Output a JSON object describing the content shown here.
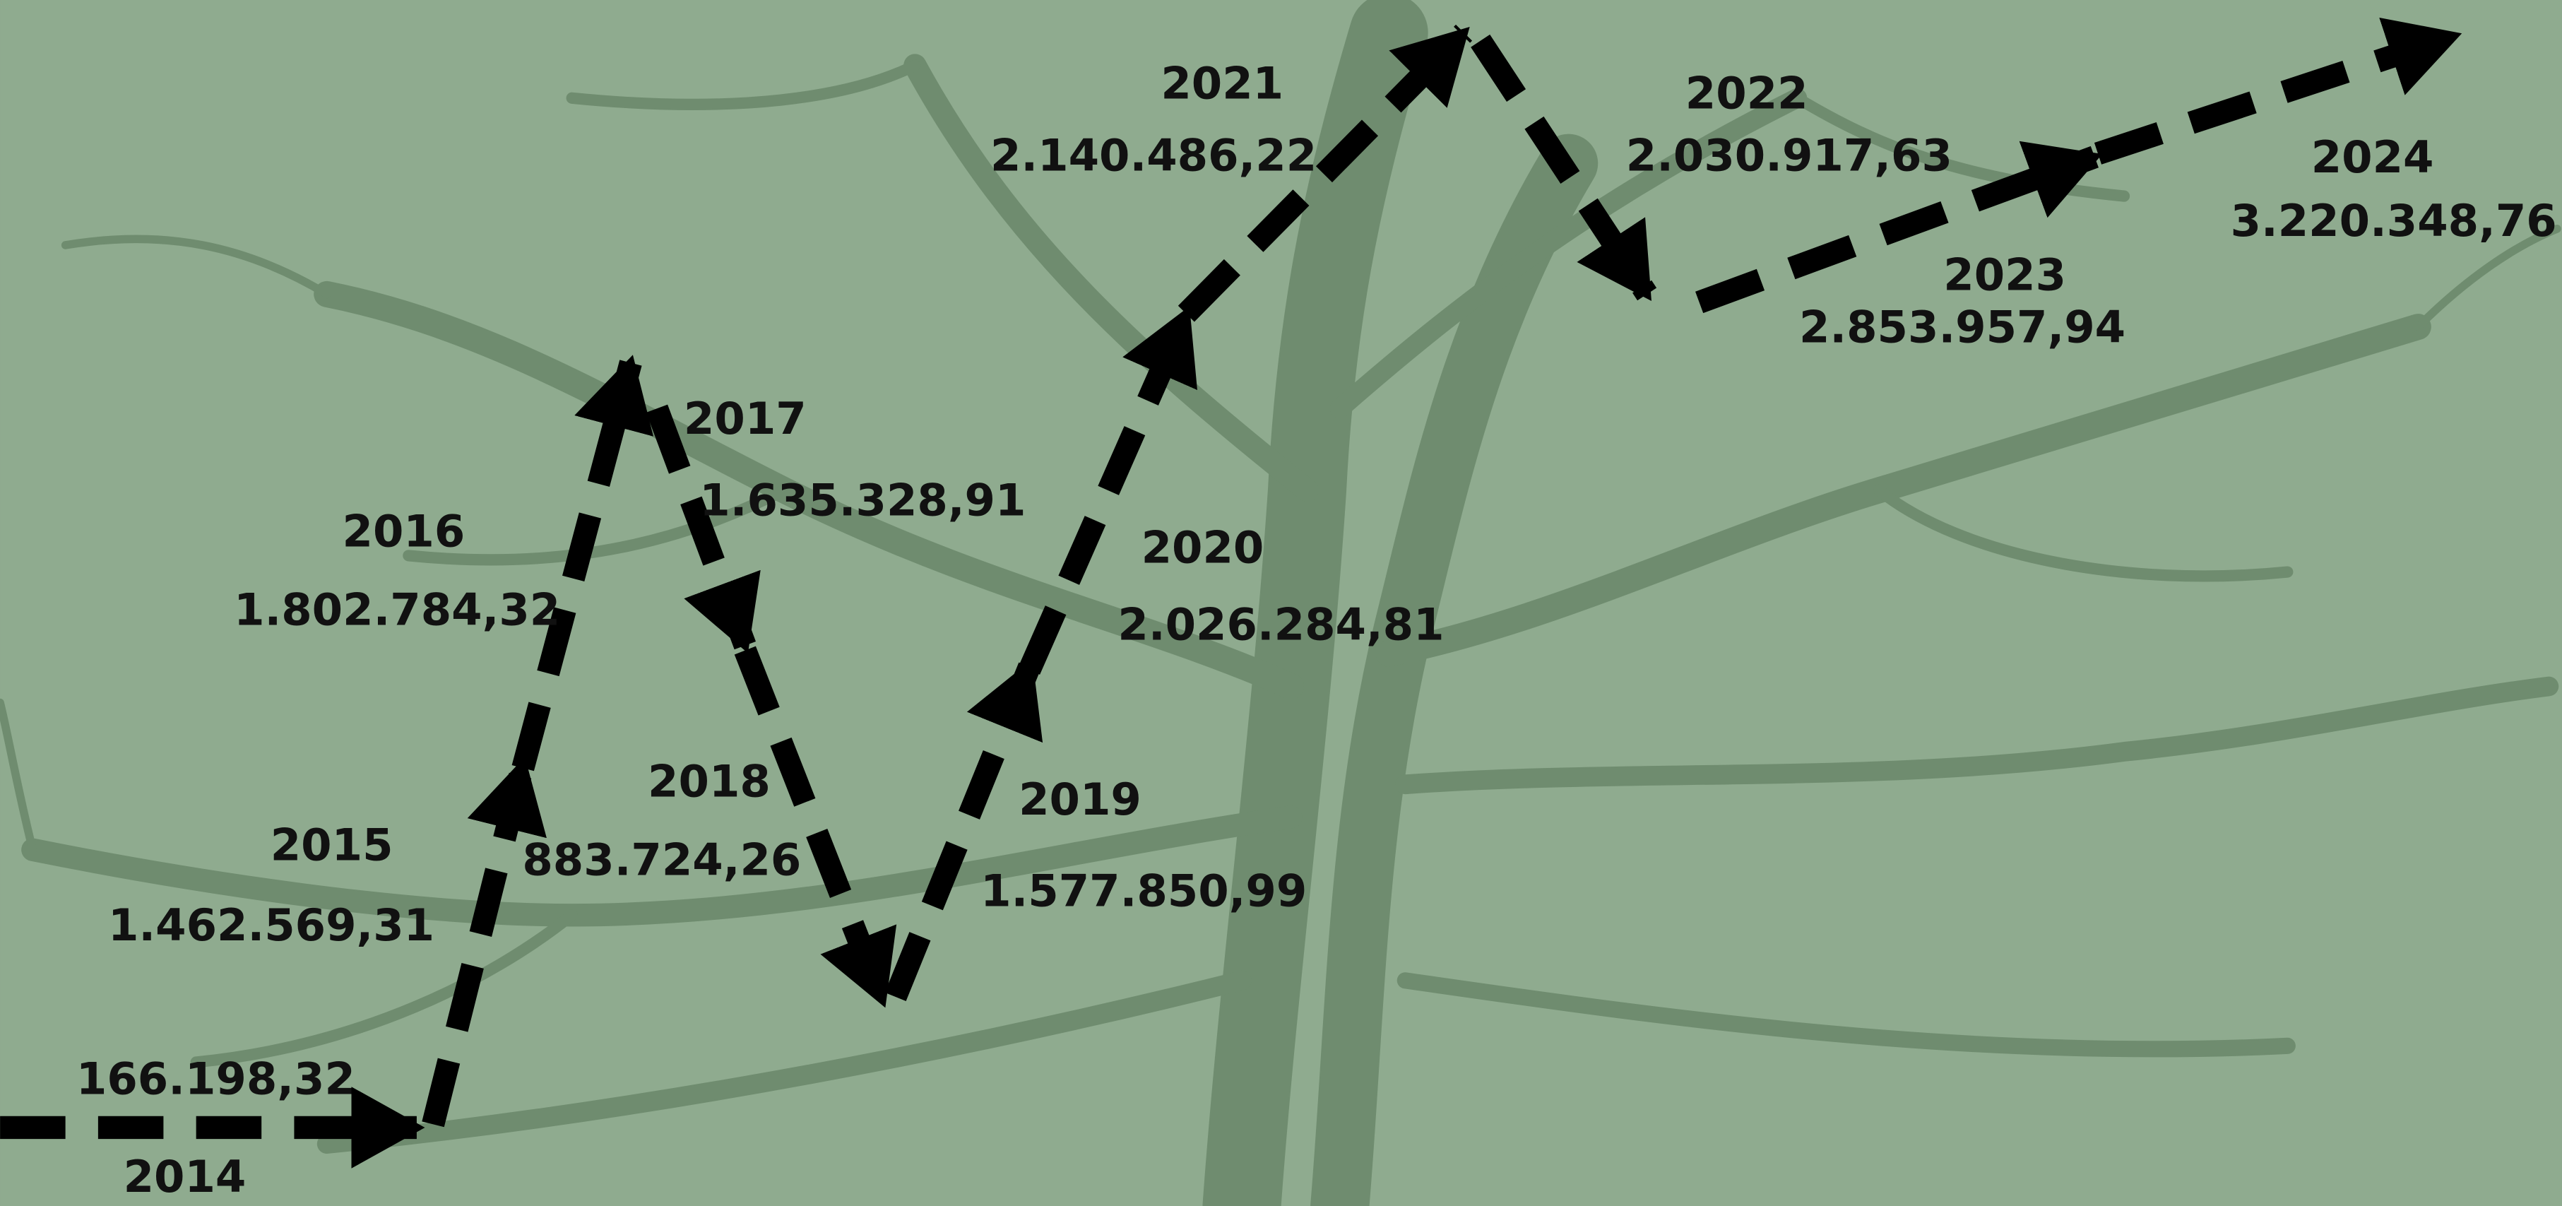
{
  "items": [
    {
      "year": "2014",
      "value": "166.198,32"
    },
    {
      "year": "2015",
      "value": "1.462.569,31"
    },
    {
      "year": "2016",
      "value": "1.802.784,32"
    },
    {
      "year": "2017",
      "value": "1.635.328,91"
    },
    {
      "year": "2018",
      "value": "883.724,26"
    },
    {
      "year": "2019",
      "value": "1.577.850,99"
    },
    {
      "year": "2020",
      "value": "2.026.284,81"
    },
    {
      "year": "2021",
      "value": "2.140.486,22"
    },
    {
      "year": "2022",
      "value": "2.030.917,63"
    },
    {
      "year": "2023",
      "value": "2.853.957,94"
    },
    {
      "year": "2024",
      "value": "3.220.348,76"
    }
  ]
}
